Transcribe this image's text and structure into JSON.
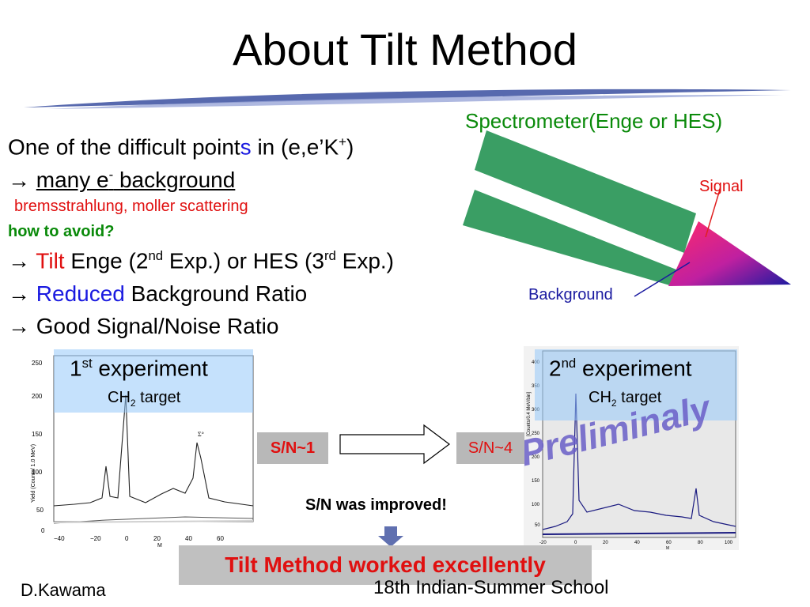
{
  "slide": {
    "title": "About Tilt Method",
    "bullets": {
      "line1_a": "One of the difficult point",
      "line1_s": "s",
      "line1_b": " in (e,e’K",
      "line1_sup": "+",
      "line1_c": ")",
      "line2_arrow": "→ ",
      "line2_a": "many e",
      "line2_sup": "-",
      "line2_b": " background",
      "line3": "bremsstrahlung, moller scattering",
      "line4": "how to avoid?",
      "line5_arrow": "→ ",
      "line5_tilt": "Tilt",
      "line5_a": " Enge (2",
      "line5_sup1": "nd",
      "line5_b": " Exp.) or HES (3",
      "line5_sup2": "rd",
      "line5_c": " Exp.)",
      "line6_arrow": "→ ",
      "line6_reduced": "Reduced",
      "line6_rest": " Background Ratio",
      "line7": "→ Good Signal/Noise Ratio"
    },
    "diagram": {
      "spectrometer_label": "Spectrometer(Enge or HES)",
      "signal_label": "Signal",
      "background_label": "Background"
    },
    "exp1": {
      "title_num": "1",
      "title_sup": "st",
      "title_rest": " experiment",
      "target_a": "CH",
      "target_sub": "2",
      "target_b": " target",
      "y_axis": "Yield (Counts/ 1.0 MeV)",
      "x_axis": "M",
      "y_ticks": [
        "250",
        "200",
        "150",
        "100",
        "50",
        "0"
      ],
      "x_ticks": [
        "−40",
        "−20",
        "0",
        "20",
        "40",
        "60"
      ],
      "peak_label": "Σ°"
    },
    "exp2": {
      "title_num": "2",
      "title_sup": "nd",
      "title_rest": " experiment",
      "target_a": "CH",
      "target_sub": "2",
      "target_b": " target",
      "y_axis": "[Counts/0.4 MeV/bin]",
      "x_axis": "M",
      "y_ticks": [
        "400",
        "350",
        "300",
        "250",
        "200",
        "150",
        "100",
        "50"
      ],
      "x_ticks": [
        "-20",
        "0",
        "20",
        "40",
        "60",
        "80",
        "100"
      ],
      "watermark": "Preliminaly"
    },
    "sn1": "S/N~1",
    "sn4": "S/N~4",
    "improved": "S/N was improved!",
    "conclusion": "Tilt Method worked excellently",
    "author": "D.Kawama",
    "event": "18th Indian-Summer School"
  }
}
